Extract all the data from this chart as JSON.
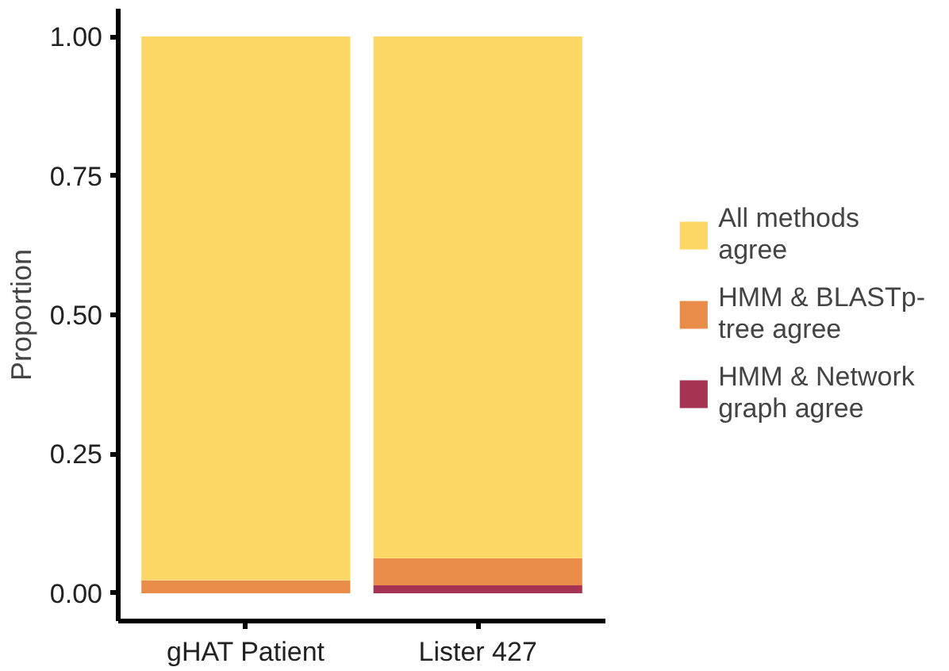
{
  "chart_data": {
    "type": "bar",
    "stacked": true,
    "ylabel": "Proportion",
    "categories": [
      "gHAT Patient",
      "Lister 427"
    ],
    "series": [
      {
        "name": "HMM & Network graph agree",
        "color": "#a63352",
        "values": [
          0,
          0.014
        ]
      },
      {
        "name": "HMM & BLASTp-tree agree",
        "color": "#e98c4a",
        "values": [
          0.023,
          0.049
        ]
      },
      {
        "name": "All methods agree",
        "color": "#fcd766",
        "values": [
          0.977,
          0.937
        ]
      }
    ],
    "ylim": [
      -0.05,
      1.05
    ],
    "yticks": [
      {
        "value": 0,
        "label": "0.00"
      },
      {
        "value": 0.25,
        "label": "0.25"
      },
      {
        "value": 0.5,
        "label": "0.50"
      },
      {
        "value": 0.75,
        "label": "0.75"
      },
      {
        "value": 1,
        "label": "1.00"
      }
    ],
    "grid": false,
    "legend": "right"
  }
}
